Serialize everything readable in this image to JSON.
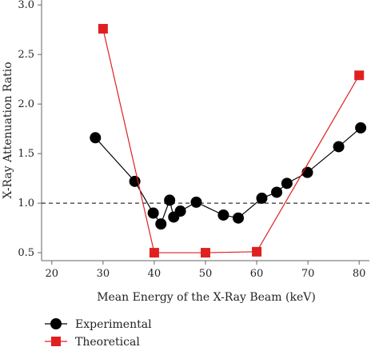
{
  "chart_data": {
    "type": "line",
    "title": "",
    "xlabel": "Mean Energy of the X-Ray Beam (keV)",
    "ylabel": "X-Ray Attenuation Ratio",
    "xlim": [
      18,
      82
    ],
    "ylim": [
      0.42,
      3.05
    ],
    "xticks": [
      20,
      30,
      40,
      50,
      60,
      70,
      80
    ],
    "yticks": [
      0.5,
      1.0,
      1.5,
      2.0,
      2.5,
      3.0
    ],
    "xtick_labels": [
      "20",
      "30",
      "40",
      "50",
      "60",
      "70",
      "80"
    ],
    "ytick_labels": [
      "0.5",
      "1.0",
      "1.5",
      "2.0",
      "2.5",
      "3.0"
    ],
    "grid": false,
    "legend_position": "bottom-left",
    "reference_line": {
      "y": 1.0,
      "style": "dashed"
    },
    "series": [
      {
        "name": "Experimental",
        "color": "#000000",
        "marker": "circle",
        "x": [
          28.5,
          36.2,
          39.8,
          41.3,
          43.0,
          43.8,
          45.1,
          48.2,
          53.5,
          56.4,
          61.0,
          63.9,
          65.9,
          69.9,
          76.0,
          80.3
        ],
        "y": [
          1.66,
          1.22,
          0.9,
          0.79,
          1.03,
          0.86,
          0.92,
          1.01,
          0.88,
          0.85,
          1.05,
          1.11,
          1.2,
          1.31,
          1.57,
          1.76
        ]
      },
      {
        "name": "Theoretical",
        "color": "#e02020",
        "marker": "square",
        "x": [
          30,
          40,
          50,
          60,
          80
        ],
        "y": [
          2.76,
          0.5,
          0.5,
          0.51,
          2.29
        ]
      }
    ]
  }
}
